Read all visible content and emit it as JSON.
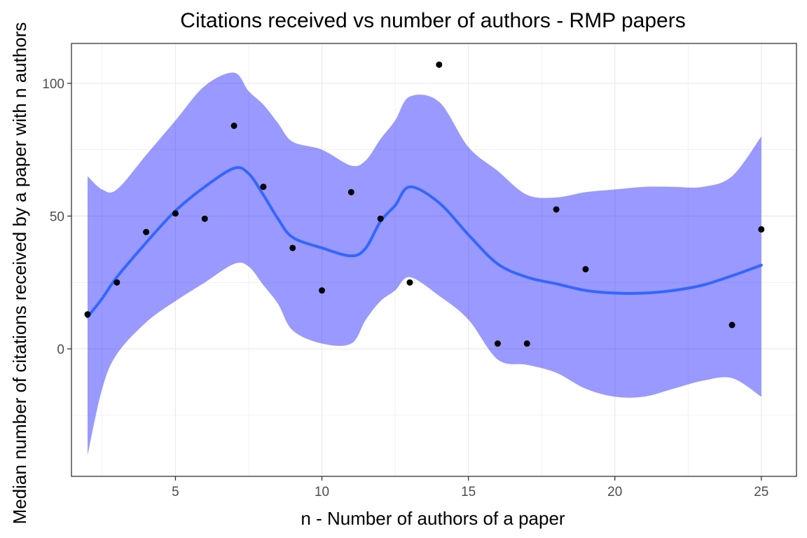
{
  "chart_data": {
    "type": "scatter",
    "title": "Citations received vs number of authors - RMP papers",
    "xlabel": "n - Number of authors of a paper",
    "ylabel": "Median number of citations received by a paper with n authors",
    "xlim": [
      1.45,
      26.2
    ],
    "ylim": [
      -48,
      115
    ],
    "x_ticks": [
      5,
      10,
      15,
      20,
      25
    ],
    "y_ticks": [
      0,
      50,
      100
    ],
    "grid": true,
    "legend": "none",
    "colors": {
      "points": "#000000",
      "smooth_line": "#3366ff",
      "band": "#0000ff",
      "band_opacity": 0.4,
      "grid": "#ebebeb",
      "panel_border": "#333333"
    },
    "points": [
      {
        "x": 2,
        "y": 13
      },
      {
        "x": 3,
        "y": 25
      },
      {
        "x": 4,
        "y": 44
      },
      {
        "x": 5,
        "y": 51
      },
      {
        "x": 6,
        "y": 49
      },
      {
        "x": 7,
        "y": 84
      },
      {
        "x": 8,
        "y": 61
      },
      {
        "x": 9,
        "y": 38
      },
      {
        "x": 10,
        "y": 22
      },
      {
        "x": 11,
        "y": 59
      },
      {
        "x": 12,
        "y": 49
      },
      {
        "x": 13,
        "y": 25
      },
      {
        "x": 14,
        "y": 107
      },
      {
        "x": 16,
        "y": 2
      },
      {
        "x": 17,
        "y": 2
      },
      {
        "x": 18,
        "y": 52.5
      },
      {
        "x": 19,
        "y": 30
      },
      {
        "x": 24,
        "y": 9
      },
      {
        "x": 25,
        "y": 45
      }
    ],
    "smooth": {
      "x": [
        2,
        2.5,
        3,
        4,
        5,
        6,
        7,
        7.5,
        8,
        8.5,
        9,
        10,
        11,
        11.5,
        12,
        12.5,
        13,
        14,
        15,
        16,
        17,
        18,
        19,
        20,
        21,
        22,
        23,
        24,
        25
      ],
      "y": [
        12,
        19,
        27,
        40,
        52,
        61,
        68,
        66,
        58,
        49,
        42,
        38,
        35,
        38,
        48,
        54,
        61,
        55,
        43,
        32,
        27,
        24.5,
        22,
        21,
        21,
        22,
        24,
        27.5,
        31.5
      ],
      "lower": [
        -40,
        -15,
        -2,
        10,
        18,
        25,
        32,
        31,
        24,
        17,
        7,
        2,
        2,
        11,
        18,
        22,
        27,
        20,
        11,
        -4,
        -6,
        -9,
        -15,
        -18,
        -18,
        -15,
        -12,
        -11,
        -18
      ],
      "upper": [
        65,
        60,
        60,
        73,
        86,
        99,
        104,
        97,
        92,
        85,
        78,
        75,
        69,
        71,
        79,
        86,
        95,
        93,
        76,
        67,
        58,
        57,
        59,
        60,
        61,
        61,
        61,
        65,
        80
      ]
    }
  }
}
